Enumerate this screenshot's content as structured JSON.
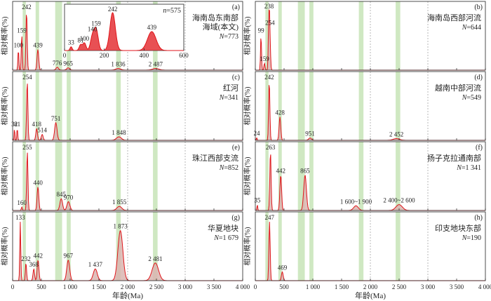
{
  "figure": {
    "xlabel": "年龄(Ma)",
    "ylabel": "相对概率(%)",
    "x_ticks_left": [
      "0",
      "500",
      "1 000",
      "1 500",
      "2 000",
      "2 500",
      "3 000",
      "3 500",
      "4 000"
    ],
    "x_ticks_right": [
      "0",
      "500",
      "1 000",
      "1 500",
      "2 000",
      "2 500",
      "3 000",
      "3 500",
      "4 000"
    ]
  },
  "colors": {
    "curve": "#e0161b",
    "fill": "#d9b5b0",
    "band": "#cfe8c2",
    "frame": "#222222"
  },
  "chart_data": [
    {
      "type": "area",
      "id": "a",
      "label": "(a)",
      "title_lines": [
        "海南岛东南部",
        "海域(本文)"
      ],
      "n_label": "N=773",
      "xlim": [
        0,
        4000
      ],
      "peaks": [
        [
          100,
          0.35
        ],
        [
          159,
          0.6
        ],
        [
          242,
          1.0
        ],
        [
          439,
          0.35
        ],
        [
          776,
          0.05
        ],
        [
          965,
          0.04
        ],
        [
          1836,
          0.03
        ],
        [
          2487,
          0.03
        ]
      ],
      "peak_labels": [
        {
          "text": "100",
          "x": 100
        },
        {
          "text": "159",
          "x": 159
        },
        {
          "text": "242",
          "x": 242
        },
        {
          "text": "439",
          "x": 439
        },
        {
          "text": "776",
          "x": 776
        },
        {
          "text": "965",
          "x": 965
        },
        {
          "text": "1 836",
          "x": 1836
        },
        {
          "text": "2 487",
          "x": 2487
        }
      ],
      "inset": {
        "n_label": "n=575",
        "xlim": [
          0,
          600
        ],
        "x_ticks": [
          "0",
          "200",
          "400",
          "600"
        ],
        "peaks": [
          [
            33,
            0.1
          ],
          [
            81,
            0.15
          ],
          [
            100,
            0.2
          ],
          [
            140,
            0.35
          ],
          [
            159,
            0.55
          ],
          [
            242,
            1.0
          ],
          [
            439,
            0.5
          ]
        ],
        "peak_labels": [
          {
            "text": "33",
            "x": 33
          },
          {
            "text": "81",
            "x": 81
          },
          {
            "text": "100",
            "x": 100
          },
          {
            "text": "140",
            "x": 140
          },
          {
            "text": "159",
            "x": 159
          },
          {
            "text": "242",
            "x": 242
          },
          {
            "text": "439",
            "x": 439
          }
        ]
      }
    },
    {
      "type": "area",
      "id": "b",
      "label": "(b)",
      "title_lines": [
        "海南岛西部河流"
      ],
      "n_label": "N=644",
      "xlim": [
        0,
        4000
      ],
      "peaks": [
        [
          99,
          0.6
        ],
        [
          159,
          0.12
        ],
        [
          238,
          1.0
        ],
        [
          254,
          0.4
        ]
      ],
      "peak_labels": [
        {
          "text": "99",
          "x": 99
        },
        {
          "text": "238",
          "x": 238
        },
        {
          "text": "254",
          "x": 254
        },
        {
          "text": "159",
          "x": 159
        }
      ]
    },
    {
      "type": "area",
      "id": "c",
      "label": "(c)",
      "title_lines": [
        "红河"
      ],
      "n_label": "N=341",
      "xlim": [
        0,
        4000
      ],
      "peaks": [
        [
          32,
          0.2
        ],
        [
          81,
          0.2
        ],
        [
          254,
          1.0
        ],
        [
          418,
          0.2
        ],
        [
          514,
          0.1
        ],
        [
          751,
          0.3
        ],
        [
          1848,
          0.06
        ]
      ],
      "peak_labels": [
        {
          "text": "32",
          "x": 32
        },
        {
          "text": "81",
          "x": 81
        },
        {
          "text": "254",
          "x": 254
        },
        {
          "text": "418",
          "x": 418
        },
        {
          "text": "514",
          "x": 514
        },
        {
          "text": "751",
          "x": 751
        },
        {
          "text": "1 848",
          "x": 1848
        }
      ]
    },
    {
      "type": "area",
      "id": "d",
      "label": "(d)",
      "title_lines": [
        "越南中部河流"
      ],
      "n_label": "N=549",
      "xlim": [
        0,
        4000
      ],
      "peaks": [
        [
          24,
          0.05
        ],
        [
          242,
          1.0
        ],
        [
          428,
          0.4
        ],
        [
          951,
          0.04
        ],
        [
          2452,
          0.03
        ]
      ],
      "peak_labels": [
        {
          "text": "24",
          "x": 24
        },
        {
          "text": "242",
          "x": 242
        },
        {
          "text": "428",
          "x": 428
        },
        {
          "text": "951",
          "x": 951
        },
        {
          "text": "2 452",
          "x": 2452
        }
      ]
    },
    {
      "type": "area",
      "id": "e",
      "label": "(e)",
      "title_lines": [
        "珠江西部支流"
      ],
      "n_label": "N=852",
      "xlim": [
        0,
        4000
      ],
      "peaks": [
        [
          160,
          0.06
        ],
        [
          255,
          1.0
        ],
        [
          440,
          0.4
        ],
        [
          845,
          0.2
        ],
        [
          970,
          0.15
        ],
        [
          1855,
          0.07
        ]
      ],
      "peak_labels": [
        {
          "text": "160",
          "x": 160
        },
        {
          "text": "255",
          "x": 255
        },
        {
          "text": "440",
          "x": 440
        },
        {
          "text": "845",
          "x": 845
        },
        {
          "text": "970",
          "x": 970
        },
        {
          "text": "1 855",
          "x": 1855
        }
      ]
    },
    {
      "type": "area",
      "id": "f",
      "label": "(f)",
      "title_lines": [
        "扬子克拉通南部"
      ],
      "n_label": "N=1 341",
      "xlim": [
        0,
        4000
      ],
      "peaks": [
        [
          35,
          0.1
        ],
        [
          263,
          1.0
        ],
        [
          442,
          0.6
        ],
        [
          865,
          0.6
        ],
        [
          1750,
          0.08
        ],
        [
          2500,
          0.1
        ]
      ],
      "peak_labels": [
        {
          "text": "35",
          "x": 35
        },
        {
          "text": "263",
          "x": 263
        },
        {
          "text": "442",
          "x": 442
        },
        {
          "text": "865",
          "x": 865
        },
        {
          "text": "1 600~1 900",
          "x": 1750
        },
        {
          "text": "2 400~2 600",
          "x": 2500
        }
      ]
    },
    {
      "type": "area",
      "id": "g",
      "label": "(g)",
      "title_lines": [
        "华夏地块"
      ],
      "n_label": "N=1 679",
      "xlim": [
        0,
        4000
      ],
      "peaks": [
        [
          133,
          1.0
        ],
        [
          232,
          0.3
        ],
        [
          442,
          0.35
        ],
        [
          368,
          0.2
        ],
        [
          967,
          0.35
        ],
        [
          1437,
          0.2
        ],
        [
          1873,
          0.85
        ],
        [
          2481,
          0.3
        ]
      ],
      "peak_labels": [
        {
          "text": "133",
          "x": 133
        },
        {
          "text": "232",
          "x": 232
        },
        {
          "text": "442",
          "x": 442
        },
        {
          "text": "368",
          "x": 368
        },
        {
          "text": "967",
          "x": 967
        },
        {
          "text": "1 437",
          "x": 1437
        },
        {
          "text": "1 873",
          "x": 1873
        },
        {
          "text": "2 481",
          "x": 2481
        }
      ]
    },
    {
      "type": "area",
      "id": "h",
      "label": "(h)",
      "title_lines": [
        "印支地块东部"
      ],
      "n_label": "N=190",
      "xlim": [
        0,
        4000
      ],
      "peaks": [
        [
          247,
          1.0
        ],
        [
          469,
          0.15
        ]
      ],
      "peak_labels": [
        {
          "text": "247",
          "x": 247
        },
        {
          "text": "469",
          "x": 469
        }
      ]
    }
  ]
}
